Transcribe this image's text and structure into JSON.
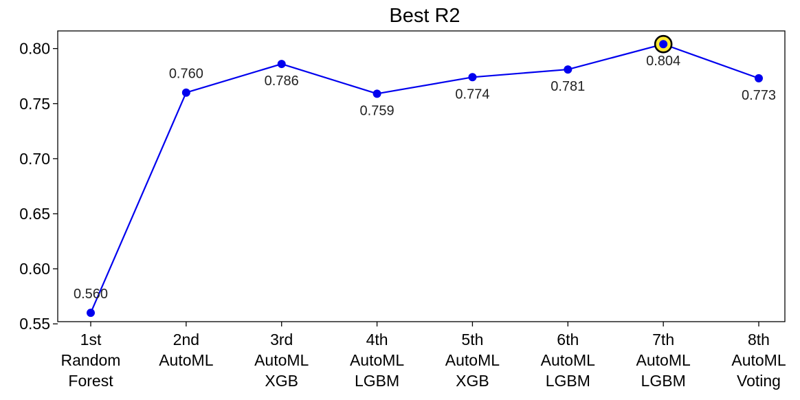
{
  "chart_data": {
    "type": "line",
    "title": "Best R2",
    "xlabel": "",
    "ylabel": "",
    "categories": [
      [
        "1st",
        "Random",
        "Forest"
      ],
      [
        "2nd",
        "AutoML"
      ],
      [
        "3rd",
        "AutoML",
        "XGB"
      ],
      [
        "4th",
        "AutoML",
        "LGBM"
      ],
      [
        "5th",
        "AutoML",
        "XGB"
      ],
      [
        "6th",
        "AutoML",
        "LGBM"
      ],
      [
        "7th",
        "AutoML",
        "LGBM"
      ],
      [
        "8th",
        "AutoML",
        "Voting"
      ]
    ],
    "values": [
      0.56,
      0.76,
      0.786,
      0.759,
      0.774,
      0.781,
      0.804,
      0.773
    ],
    "data_labels": [
      "0.560",
      "0.760",
      "0.786",
      "0.759",
      "0.774",
      "0.781",
      "0.804",
      "0.773"
    ],
    "label_position": [
      "above",
      "above",
      "below",
      "below",
      "below",
      "below",
      "below",
      "below"
    ],
    "highlight_index": 6,
    "ylim": [
      0.552,
      0.816
    ],
    "yticks": [
      0.55,
      0.6,
      0.65,
      0.7,
      0.75,
      0.8
    ],
    "ytick_labels": [
      "0.55",
      "0.60",
      "0.65",
      "0.70",
      "0.75",
      "0.80"
    ],
    "grid": false,
    "legend": "none",
    "colors": {
      "line": "#0000ee",
      "marker": "#0000ee",
      "highlight_fill": "#ffe833",
      "highlight_edge": "#000000",
      "text": "#000000"
    }
  }
}
